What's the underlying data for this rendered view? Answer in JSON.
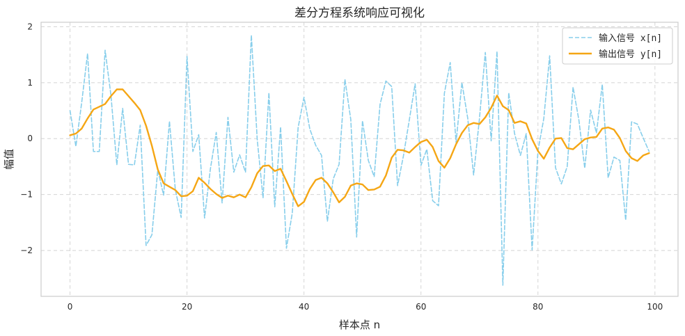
{
  "chart_data": {
    "type": "line",
    "title": "差分方程系统响应可视化",
    "xlabel": "样本点 n",
    "ylabel": "幅值",
    "xlim": [
      -4.95,
      103.95
    ],
    "ylim": [
      -2.82,
      2.08
    ],
    "xticks": [
      0,
      20,
      40,
      60,
      80,
      100
    ],
    "yticks": [
      -2,
      -1,
      0,
      1,
      2
    ],
    "grid": true,
    "legend_position": "top-right",
    "series": [
      {
        "name": "输入信号 x[n]",
        "color": "#87ceeb",
        "style": "dashed",
        "values": [
          0.5,
          -0.14,
          0.65,
          1.52,
          -0.23,
          -0.23,
          1.58,
          0.77,
          -0.47,
          0.54,
          -0.46,
          -0.47,
          0.24,
          -1.91,
          -1.72,
          -0.56,
          -1.01,
          0.31,
          -0.91,
          -1.41,
          1.47,
          -0.23,
          0.07,
          -1.42,
          -0.54,
          0.11,
          -1.15,
          0.38,
          -0.6,
          -0.29,
          -0.6,
          1.85,
          -0.01,
          -1.06,
          0.82,
          -1.22,
          0.21,
          -1.96,
          -1.33,
          0.2,
          0.74,
          0.17,
          -0.12,
          -0.3,
          -1.48,
          -0.72,
          -0.46,
          1.06,
          0.34,
          -1.76,
          0.32,
          -0.39,
          -0.68,
          0.61,
          1.03,
          0.93,
          -0.84,
          -0.31,
          0.33,
          0.98,
          -0.48,
          -0.19,
          -1.11,
          -1.2,
          0.81,
          1.36,
          -0.07,
          1.0,
          0.36,
          -0.65,
          0.36,
          1.54,
          -0.04,
          1.56,
          -2.62,
          0.82,
          0.09,
          -0.3,
          0.09,
          -1.99,
          -0.22,
          0.36,
          1.48,
          -0.52,
          -0.81,
          -0.5,
          0.92,
          0.33,
          -0.53,
          0.51,
          0.1,
          0.97,
          -0.7,
          -0.33,
          -0.39,
          -1.46,
          0.3,
          0.26,
          0.01,
          -0.23
        ]
      },
      {
        "name": "输出信号 y[n]",
        "color": "#f5a614",
        "style": "solid",
        "values": [
          0.06,
          0.09,
          0.18,
          0.36,
          0.52,
          0.57,
          0.62,
          0.76,
          0.88,
          0.88,
          0.76,
          0.64,
          0.51,
          0.23,
          -0.13,
          -0.55,
          -0.8,
          -0.86,
          -0.92,
          -1.03,
          -1.02,
          -0.94,
          -0.7,
          -0.79,
          -0.9,
          -0.99,
          -1.06,
          -1.02,
          -1.05,
          -1.0,
          -1.05,
          -0.87,
          -0.62,
          -0.49,
          -0.48,
          -0.58,
          -0.54,
          -0.76,
          -0.99,
          -1.21,
          -1.13,
          -0.9,
          -0.74,
          -0.7,
          -0.8,
          -0.96,
          -1.14,
          -1.04,
          -0.84,
          -0.8,
          -0.82,
          -0.92,
          -0.91,
          -0.86,
          -0.66,
          -0.34,
          -0.2,
          -0.21,
          -0.25,
          -0.15,
          -0.06,
          -0.02,
          -0.15,
          -0.4,
          -0.52,
          -0.35,
          -0.1,
          0.1,
          0.24,
          0.28,
          0.26,
          0.38,
          0.55,
          0.77,
          0.58,
          0.51,
          0.28,
          0.31,
          0.27,
          -0.01,
          -0.22,
          -0.36,
          -0.16,
          0.0,
          0.01,
          -0.17,
          -0.19,
          -0.1,
          -0.01,
          0.02,
          0.03,
          0.18,
          0.2,
          0.16,
          0.01,
          -0.22,
          -0.35,
          -0.4,
          -0.3,
          -0.26
        ]
      }
    ]
  }
}
